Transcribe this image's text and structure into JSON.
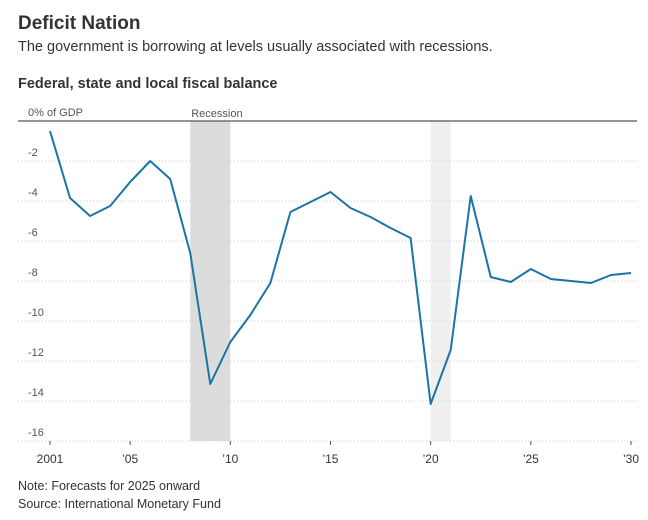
{
  "chart_data": {
    "type": "line",
    "title": "Deficit Nation",
    "subtitle": "The government is borrowing at levels usually associated with recessions.",
    "chart_title": "Federal, state and local fiscal balance",
    "note": "Note: Forecasts for 2025 onward",
    "source": "Source: International Monetary Fund",
    "x": [
      2001,
      2002,
      2003,
      2004,
      2005,
      2006,
      2007,
      2008,
      2009,
      2010,
      2011,
      2012,
      2013,
      2014,
      2015,
      2016,
      2017,
      2018,
      2019,
      2020,
      2021,
      2022,
      2023,
      2024,
      2025,
      2026,
      2027,
      2028,
      2029,
      2030
    ],
    "series": [
      {
        "color": "#1a74a6",
        "values": [
          -0.5,
          -3.85,
          -4.75,
          -4.25,
          -3.05,
          -2.0,
          -2.9,
          -6.6,
          -13.15,
          -11.05,
          -9.7,
          -8.1,
          -4.55,
          -4.05,
          -3.55,
          -4.35,
          -4.8,
          -5.35,
          -5.85,
          -14.15,
          -11.45,
          -3.75,
          -7.8,
          -8.05,
          -7.4,
          -7.9,
          -8.0,
          -8.1,
          -7.7,
          -7.6
        ]
      }
    ],
    "xlim": [
      2001,
      2030
    ],
    "xticks": [
      {
        "value": 2001,
        "label": "2001"
      },
      {
        "value": 2005,
        "label": "’05"
      },
      {
        "value": 2010,
        "label": "’10"
      },
      {
        "value": 2015,
        "label": "’15"
      },
      {
        "value": 2020,
        "label": "’20"
      },
      {
        "value": 2025,
        "label": "’25"
      },
      {
        "value": 2030,
        "label": "’30"
      }
    ],
    "ylim": [
      -16,
      0
    ],
    "yticks": [
      {
        "value": 0,
        "label": "0% of GDP"
      },
      -2,
      -4,
      -6,
      -8,
      -10,
      -12,
      -14,
      -16
    ],
    "grid": true,
    "shaded_ranges": [
      {
        "start": 2008,
        "end": 2010,
        "label": "Recession",
        "color": "#dcdcdc"
      },
      {
        "start": 2020,
        "end": 2021,
        "color": "#efeff0"
      }
    ]
  }
}
